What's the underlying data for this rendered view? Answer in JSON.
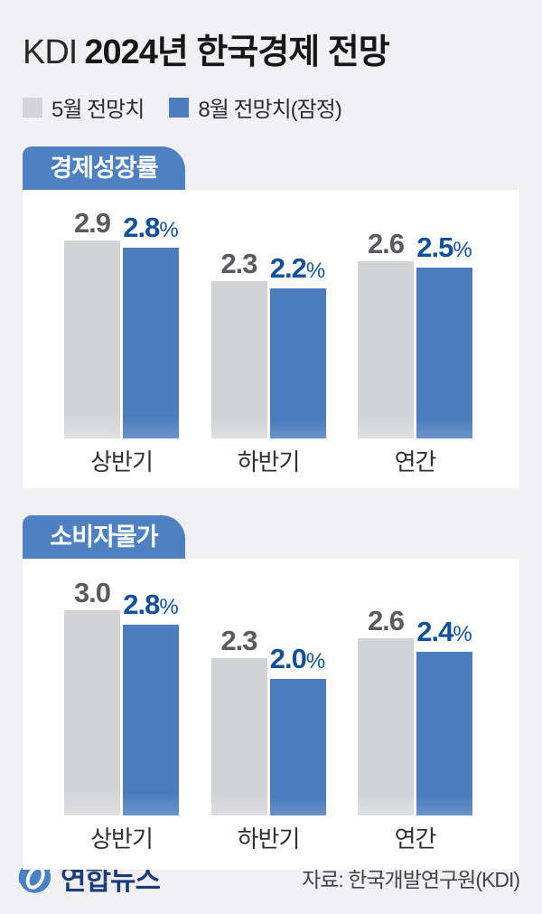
{
  "title": {
    "prefix": "KDI",
    "main": "2024년 한국경제 전망"
  },
  "legend": [
    {
      "label": "5월 전망치",
      "color": "#d2d3d5"
    },
    {
      "label": "8월 전망치(잠정)",
      "color": "#4b7cbe"
    }
  ],
  "colors": {
    "background": "#f1f1f3",
    "card": "#ffffff",
    "badge_blue": "#4e80c2",
    "bar_may": "#d2d3d5",
    "bar_aug": "#4b7cbe",
    "value_may_text": "#595b5e",
    "value_aug_text": "#134f9a",
    "brand_navy": "#1e3a78"
  },
  "chart_data": [
    {
      "type": "bar",
      "title": "경제성장률",
      "unit": "%",
      "categories": [
        "상반기",
        "하반기",
        "연간"
      ],
      "series": [
        {
          "name": "5월 전망치",
          "values": [
            2.9,
            2.3,
            2.6
          ]
        },
        {
          "name": "8월 전망치(잠정)",
          "values": [
            2.8,
            2.2,
            2.5
          ]
        }
      ],
      "ylim": [
        0,
        3.2
      ],
      "grid": false,
      "legend_position": "top-left",
      "value_labels": "above-bars"
    },
    {
      "type": "bar",
      "title": "소비자물가",
      "unit": "%",
      "categories": [
        "상반기",
        "하반기",
        "연간"
      ],
      "series": [
        {
          "name": "5월 전망치",
          "values": [
            3.0,
            2.3,
            2.6
          ]
        },
        {
          "name": "8월 전망치(잠정)",
          "values": [
            2.8,
            2.0,
            2.4
          ]
        }
      ],
      "ylim": [
        0,
        3.2
      ],
      "grid": false,
      "legend_position": "top-left",
      "value_labels": "above-bars"
    }
  ],
  "footer": {
    "logo_text": "연합뉴스",
    "source": "자료: 한국개발연구원(KDI)"
  }
}
